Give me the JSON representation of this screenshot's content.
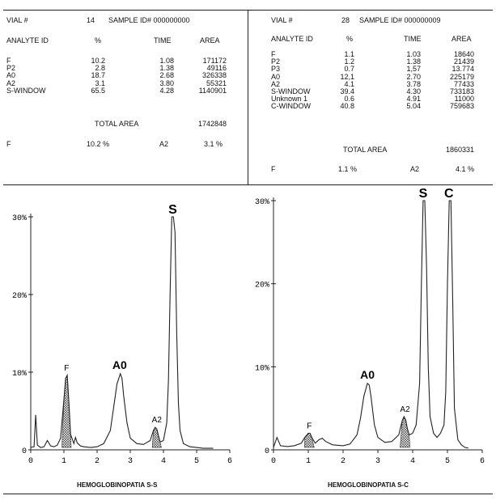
{
  "chart_data": [
    {
      "type": "line",
      "title": "HEMOGLOBINOPATIA S-S",
      "xlabel": "HEMOGLOBINOPATIA S-S",
      "ylabel": "",
      "xlim": [
        0,
        6
      ],
      "ylim": [
        0,
        30
      ],
      "x_ticks": [
        "0",
        "1",
        "2",
        "3",
        "4",
        "5",
        "6"
      ],
      "y_ticks": [
        "0",
        "10%",
        "20%",
        "30%"
      ],
      "header": {
        "vial_label": "VIAL #",
        "vial": "14",
        "sample_label": "SAMPLE",
        "sample_id": "ID# 000000000",
        "col_analyte": "ANALYTE ID",
        "col_percent": "%",
        "col_time": "TIME",
        "col_area": "AREA"
      },
      "table": [
        {
          "analyte": "F",
          "percent": "10.2",
          "time": "1.08",
          "area": "171172"
        },
        {
          "analyte": "P2",
          "percent": "2.8",
          "time": "1.38",
          "area": "49116"
        },
        {
          "analyte": "A0",
          "percent": "18.7",
          "time": "2.68",
          "area": "326338"
        },
        {
          "analyte": "A2",
          "percent": "3.1",
          "time": "3.80",
          "area": "55321"
        },
        {
          "analyte": "S-WINDOW",
          "percent": "65.5",
          "time": "4.28",
          "area": "1140901"
        }
      ],
      "total_label": "TOTAL AREA",
      "total_area": "1742848",
      "summary": {
        "f_label": "F",
        "f_value": "10.2 %",
        "a2_label": "A2",
        "a2_value": "3.1 %"
      },
      "peaks": [
        {
          "label": "F",
          "x": 1.08,
          "y": 9.6,
          "hatched": true
        },
        {
          "label": "A0",
          "x": 2.68,
          "y": 9.8,
          "hatched": false
        },
        {
          "label": "A2",
          "x": 3.8,
          "y": 2.9,
          "hatched": true
        },
        {
          "label": "S",
          "x": 4.28,
          "y": 30,
          "hatched": false
        }
      ],
      "series": [
        {
          "name": "trace",
          "x": [
            0.0,
            0.1,
            0.15,
            0.2,
            0.3,
            0.4,
            0.5,
            0.6,
            0.7,
            0.8,
            0.9,
            1.0,
            1.05,
            1.1,
            1.15,
            1.2,
            1.3,
            1.35,
            1.4,
            1.5,
            1.6,
            1.8,
            2.0,
            2.2,
            2.4,
            2.5,
            2.6,
            2.7,
            2.75,
            2.8,
            2.9,
            3.0,
            3.2,
            3.4,
            3.6,
            3.7,
            3.75,
            3.8,
            3.85,
            3.9,
            4.0,
            4.1,
            4.15,
            4.2,
            4.25,
            4.3,
            4.35,
            4.4,
            4.45,
            4.5,
            4.6,
            4.8,
            5.0,
            5.2,
            5.4,
            5.5
          ],
          "y": [
            0.3,
            0.4,
            4.5,
            0.6,
            0.3,
            0.4,
            1.2,
            0.5,
            0.4,
            0.6,
            1.5,
            6.5,
            9.2,
            9.6,
            6.0,
            2.0,
            0.8,
            1.6,
            0.9,
            0.5,
            0.4,
            0.3,
            0.4,
            0.8,
            2.5,
            5.5,
            8.5,
            9.8,
            9.2,
            7.0,
            3.5,
            1.5,
            0.8,
            0.7,
            1.2,
            2.5,
            2.9,
            2.7,
            1.8,
            1.0,
            1.2,
            3.5,
            9.0,
            20.0,
            30.0,
            30.0,
            28.0,
            15.0,
            6.0,
            2.5,
            0.8,
            0.4,
            0.3,
            0.2,
            0.2,
            0.2
          ]
        }
      ]
    },
    {
      "type": "line",
      "title": "HEMOGLOBINOPATIA S-C",
      "xlabel": "HEMOGLOBINOPATIA S-C",
      "ylabel": "",
      "xlim": [
        0,
        6
      ],
      "ylim": [
        0,
        30
      ],
      "x_ticks": [
        "0",
        "1",
        "2",
        "3",
        "4",
        "5",
        "6"
      ],
      "y_ticks": [
        "0",
        "10%",
        "20%",
        "30%"
      ],
      "header": {
        "vial_label": "VIAL #",
        "vial": "28",
        "sample_label": "SAMPLE",
        "sample_id": "ID# 000000009",
        "col_analyte": "ANALYTE ID",
        "col_percent": "%",
        "col_time": "TIME",
        "col_area": "AREA"
      },
      "table": [
        {
          "analyte": "F",
          "percent": "1.1",
          "time": "1.03",
          "area": "18640"
        },
        {
          "analyte": "P2",
          "percent": "1.2",
          "time": "1.38",
          "area": "21439"
        },
        {
          "analyte": "P3",
          "percent": "0.7",
          "time": "1,57",
          "area": "13.774"
        },
        {
          "analyte": "A0",
          "percent": "12,1",
          "time": "2.70",
          "area": "225179"
        },
        {
          "analyte": "A2",
          "percent": "4.1",
          "time": "3.78",
          "area": "77433"
        },
        {
          "analyte": "S-WINDOW",
          "percent": "39.4",
          "time": "4.30",
          "area": "733183"
        },
        {
          "analyte": "Unknown 1",
          "percent": "0.6",
          "time": "4.91",
          "area": "11000"
        },
        {
          "analyte": "C-WINDOW",
          "percent": "40.8",
          "time": "5.04",
          "area": "759683"
        }
      ],
      "total_label": "TOTAL AREA",
      "total_area": "1860331",
      "summary": {
        "f_label": "F",
        "f_value": "1.1 %",
        "a2_label": "A2",
        "a2_value": "4.1 %"
      },
      "peaks": [
        {
          "label": "F",
          "x": 1.03,
          "y": 2.0,
          "hatched": true
        },
        {
          "label": "A0",
          "x": 2.7,
          "y": 8.0,
          "hatched": false
        },
        {
          "label": "A2",
          "x": 3.78,
          "y": 4.0,
          "hatched": true
        },
        {
          "label": "S",
          "x": 4.3,
          "y": 30,
          "hatched": false
        },
        {
          "label": "C",
          "x": 5.04,
          "y": 30,
          "hatched": false
        }
      ],
      "series": [
        {
          "name": "trace",
          "x": [
            0.0,
            0.1,
            0.2,
            0.4,
            0.6,
            0.8,
            0.9,
            1.0,
            1.05,
            1.1,
            1.2,
            1.3,
            1.4,
            1.5,
            1.7,
            2.0,
            2.2,
            2.4,
            2.5,
            2.6,
            2.7,
            2.75,
            2.8,
            2.9,
            3.0,
            3.2,
            3.4,
            3.6,
            3.7,
            3.75,
            3.8,
            3.85,
            3.9,
            4.0,
            4.1,
            4.2,
            4.25,
            4.3,
            4.35,
            4.4,
            4.45,
            4.5,
            4.6,
            4.7,
            4.8,
            4.9,
            4.95,
            5.0,
            5.05,
            5.1,
            5.15,
            5.2,
            5.3,
            5.4,
            5.5,
            5.6
          ],
          "y": [
            0.3,
            1.5,
            0.5,
            0.4,
            0.5,
            0.8,
            1.5,
            2.0,
            2.0,
            1.5,
            0.8,
            1.2,
            1.4,
            1.0,
            0.6,
            0.5,
            0.7,
            1.8,
            3.8,
            6.5,
            8.0,
            7.8,
            6.5,
            3.0,
            1.5,
            0.9,
            1.0,
            1.8,
            3.5,
            4.0,
            3.6,
            2.5,
            1.8,
            2.0,
            3.0,
            8.0,
            20.0,
            30.0,
            30.0,
            22.0,
            10.0,
            4.0,
            2.0,
            1.5,
            2.0,
            3.0,
            7.0,
            20.0,
            30.0,
            30.0,
            18.0,
            5.0,
            1.2,
            0.6,
            0.3,
            0.2
          ]
        }
      ]
    }
  ]
}
